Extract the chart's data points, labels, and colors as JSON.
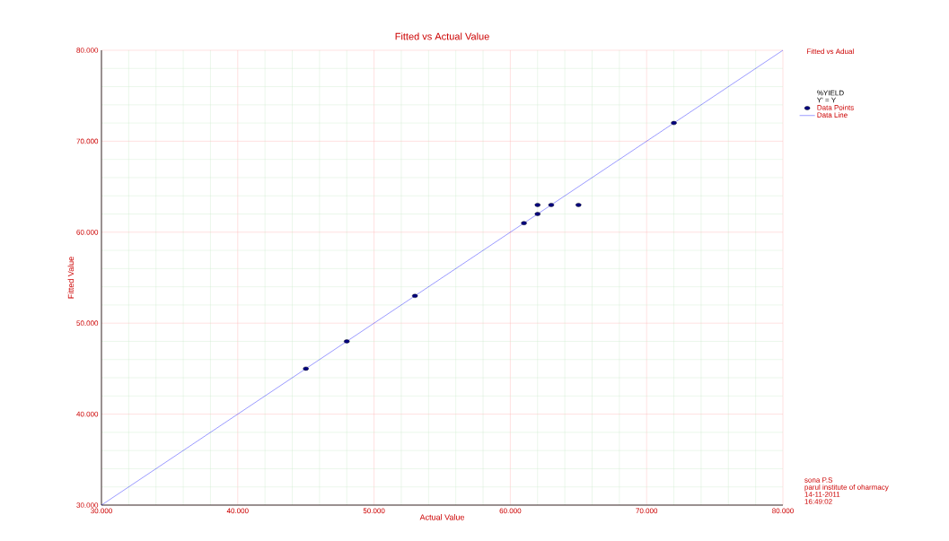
{
  "chart_data": {
    "type": "scatter",
    "title": "Fitted vs Actual Value",
    "xlabel": "Actual Value",
    "ylabel": "Fitted Value",
    "legend_title": "%YIELD",
    "annotations": [
      "Fitted vs Adual",
      "Y' = Y",
      "sona P.S",
      "parul institute of oharmacy",
      "14-11-2011",
      "16:49:02"
    ],
    "series": [
      {
        "name": "Data Points",
        "color": "#000080",
        "marker": "circle",
        "x": [
          45,
          48,
          53,
          61,
          62,
          62,
          63,
          65,
          72
        ],
        "values": [
          45,
          48,
          53,
          61,
          62,
          63,
          63,
          63,
          72
        ]
      },
      {
        "name": "Data Line",
        "type": "line",
        "color": "#0000ff",
        "marker": "none",
        "line_style": "solid",
        "x": [
          30,
          80
        ],
        "values": [
          30,
          80
        ]
      }
    ],
    "xlim": [
      30,
      80
    ],
    "ylim": [
      30,
      80
    ],
    "xticks": [
      {
        "value": 30,
        "label": "30.000"
      },
      {
        "value": 40,
        "label": "40.000"
      },
      {
        "value": 50,
        "label": "50.000"
      },
      {
        "value": 60,
        "label": "60.000"
      },
      {
        "value": 70,
        "label": "70.000"
      },
      {
        "value": 80,
        "label": "80.000"
      }
    ],
    "yticks": [
      {
        "value": 30,
        "label": "30.000"
      },
      {
        "value": 40,
        "label": "40.000"
      },
      {
        "value": 50,
        "label": "50.000"
      },
      {
        "value": 60,
        "label": "60.000"
      },
      {
        "value": 70,
        "label": "70.000"
      },
      {
        "value": 80,
        "label": "80.000"
      }
    ],
    "grid": true,
    "legend": "right"
  }
}
